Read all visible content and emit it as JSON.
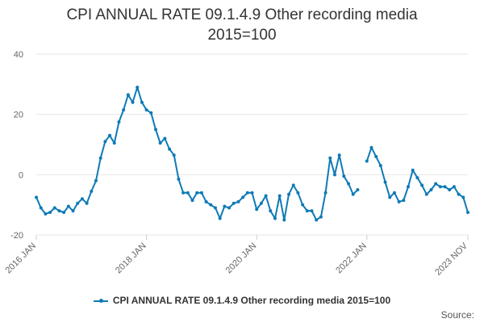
{
  "title_line1": "CPI ANNUAL RATE 09.1.4.9 Other recording media",
  "title_line2": "2015=100",
  "source_label": "Source:",
  "colors": {
    "series": "#0f7ab5",
    "grid": "#e6e6e6",
    "axis_text": "#666666"
  },
  "chart_data": {
    "type": "line",
    "title": "CPI ANNUAL RATE 09.1.4.9 Other recording media 2015=100",
    "xlabel": "",
    "ylabel": "",
    "ylim": [
      -20,
      40
    ],
    "yticks": [
      -20,
      0,
      20,
      40
    ],
    "x_start": "2016 JAN",
    "x_end": "2023 NOV",
    "xticks": [
      "2016 JAN",
      "2018 JAN",
      "2020 JAN",
      "2022 JAN",
      "2023 NOV"
    ],
    "grid": true,
    "legend": "bottom",
    "series": [
      {
        "name": "CPI ANNUAL RATE 09.1.4.9 Other recording media 2015=100",
        "values": [
          -7.5,
          -11,
          -13,
          -12.5,
          -11,
          -12,
          -12.5,
          -10.5,
          -12,
          -9.5,
          -8,
          -9.5,
          -5.5,
          -2,
          5.5,
          11,
          13,
          10.5,
          17.5,
          21.5,
          26.5,
          24,
          29,
          24,
          21.5,
          20.5,
          15,
          10.5,
          12,
          8.5,
          6.5,
          -1.5,
          -6,
          -6,
          -8.5,
          -6,
          -6,
          -9,
          -10,
          -11,
          -14.5,
          -10.5,
          -11,
          -9.5,
          -9,
          -7.5,
          -6,
          -6,
          -11.5,
          -9.5,
          -7,
          -12,
          -14.5,
          -7,
          -15,
          -6.5,
          -3.5,
          -6,
          -10,
          -12,
          -12,
          -15,
          -14,
          -6,
          5.5,
          0,
          6.5,
          -0.5,
          -3,
          -6.5,
          -5,
          null,
          4.5,
          9,
          6,
          3,
          -2.5,
          -7.5,
          -6,
          -9,
          -8.5,
          -4,
          1.5,
          -1,
          -3.5,
          -6.5,
          -5,
          -3,
          -4,
          -4,
          -5,
          -4,
          -6.5,
          -7.5,
          -12.5
        ]
      }
    ]
  }
}
